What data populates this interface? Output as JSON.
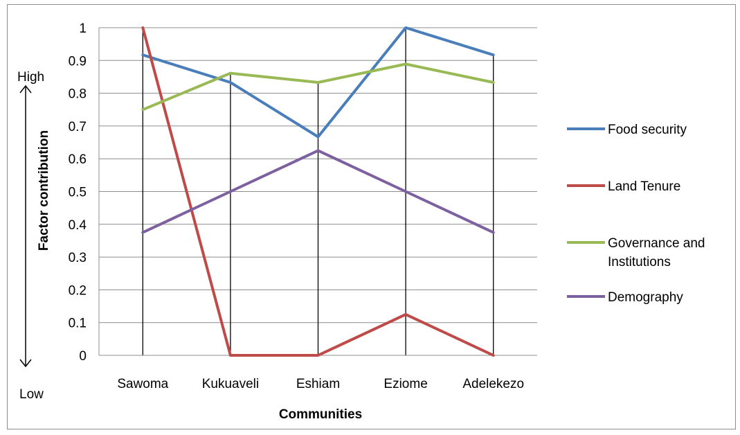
{
  "chart_data": {
    "type": "line",
    "categories": [
      "Sawoma",
      "Kukuaveli",
      "Eshiam",
      "Eziome",
      "Adelekezo"
    ],
    "series": [
      {
        "name": "Food security",
        "color": "#4a7ebb",
        "values": [
          0.917,
          0.833,
          0.667,
          1.0,
          0.917
        ]
      },
      {
        "name": "Land Tenure",
        "color": "#be4b48",
        "values": [
          1.0,
          0.0,
          0.0,
          0.125,
          0.0
        ]
      },
      {
        "name": "Governance and Institutions",
        "legend_lines": [
          "Governance and",
          "Institutions"
        ],
        "color": "#98b954",
        "values": [
          0.75,
          0.861,
          0.833,
          0.889,
          0.833
        ]
      },
      {
        "name": "Demography",
        "color": "#7d60a0",
        "values": [
          0.375,
          0.5,
          0.625,
          0.5,
          0.375
        ]
      }
    ],
    "xlabel": "Communities",
    "ylabel": "Factor contribution",
    "ylim": [
      0,
      1
    ],
    "yticks": [
      "0",
      "0.1",
      "0.2",
      "0.3",
      "0.4",
      "0.5",
      "0.6",
      "0.7",
      "0.8",
      "0.9",
      "1"
    ],
    "high_label": "High",
    "low_label": "Low",
    "grid": true,
    "drop_lines": true,
    "legend_position": "right"
  }
}
